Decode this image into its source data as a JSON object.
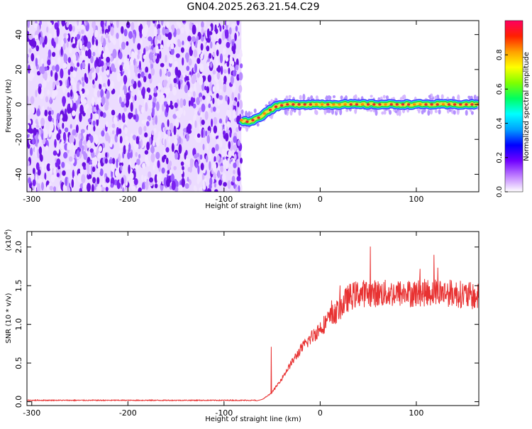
{
  "title": "GN04.2025.263.21.54.C29",
  "colors": {
    "noise": "#7a1ff0",
    "ridge_red": "#e8262a",
    "ridge_green": "#22e24a",
    "ridge_yellow": "#e8e23a",
    "snr_line": "#e83232"
  },
  "chart_data": [
    {
      "type": "heatmap",
      "name": "spectrogram",
      "xlabel": "Height of straight line (km)",
      "ylabel": "Frequency (Hz)",
      "xlim": [
        -305,
        165
      ],
      "ylim": [
        -50,
        48
      ],
      "xticks": [
        -300,
        -200,
        -100,
        0,
        100
      ],
      "xtick_labels": [
        "-300",
        "-200",
        "-100",
        "0",
        "100"
      ],
      "yticks": [
        40,
        20,
        0,
        -20,
        -40
      ],
      "ytick_labels": [
        "40",
        "20",
        "0",
        "-20",
        "-40"
      ],
      "noise_region": [
        -305,
        -82
      ],
      "ridge": {
        "x": [
          -82,
          -75,
          -65,
          -55,
          -45,
          -35,
          -20,
          0,
          50,
          100,
          165
        ],
        "freq": [
          -9,
          -10,
          -8,
          -4,
          -1,
          0,
          0,
          0,
          0,
          0,
          0
        ]
      },
      "colorbar": {
        "label": "Normalized spectral amplitude",
        "range": [
          0,
          1
        ],
        "ticks": [
          0.0,
          0.2,
          0.4,
          0.6,
          0.8
        ],
        "tick_labels": [
          "0.0",
          "0.2",
          "0.4",
          "0.6",
          "0.8"
        ],
        "stops": [
          "#ffffff",
          "#c080ff",
          "#7000ff",
          "#0000ff",
          "#00a0ff",
          "#00ffff",
          "#00ff60",
          "#80ff00",
          "#ffff00",
          "#ffa000",
          "#ff2000",
          "#ff0060"
        ]
      }
    },
    {
      "type": "line",
      "name": "snr",
      "xlabel": "Height of straight line (km)",
      "ylabel": "SNR (10 * v/v)",
      "scale_label": "(x10",
      "scale_exponent": "4",
      "scale_suffix": ")",
      "xlim": [
        -305,
        165
      ],
      "ylim": [
        -0.05,
        2.2
      ],
      "xticks": [
        -300,
        -200,
        -100,
        0,
        100
      ],
      "xtick_labels": [
        "-300",
        "-200",
        "-100",
        "0",
        "100"
      ],
      "yticks": [
        0.0,
        0.5,
        1.0,
        1.5,
        2.0
      ],
      "ytick_labels": [
        "0.0",
        "0.5",
        "1.0",
        "1.5",
        "2.0"
      ],
      "x": [
        -305,
        -100,
        -70,
        -60,
        -50,
        -40,
        -30,
        -20,
        -10,
        0,
        10,
        20,
        30,
        40,
        60,
        80,
        100,
        120,
        140,
        165
      ],
      "y": [
        0.0,
        0.0,
        0.0,
        0.03,
        0.12,
        0.3,
        0.5,
        0.68,
        0.82,
        0.95,
        1.08,
        1.2,
        1.35,
        1.4,
        1.4,
        1.4,
        1.4,
        1.42,
        1.4,
        1.35
      ],
      "noise_amplitude": 0.15
    }
  ]
}
